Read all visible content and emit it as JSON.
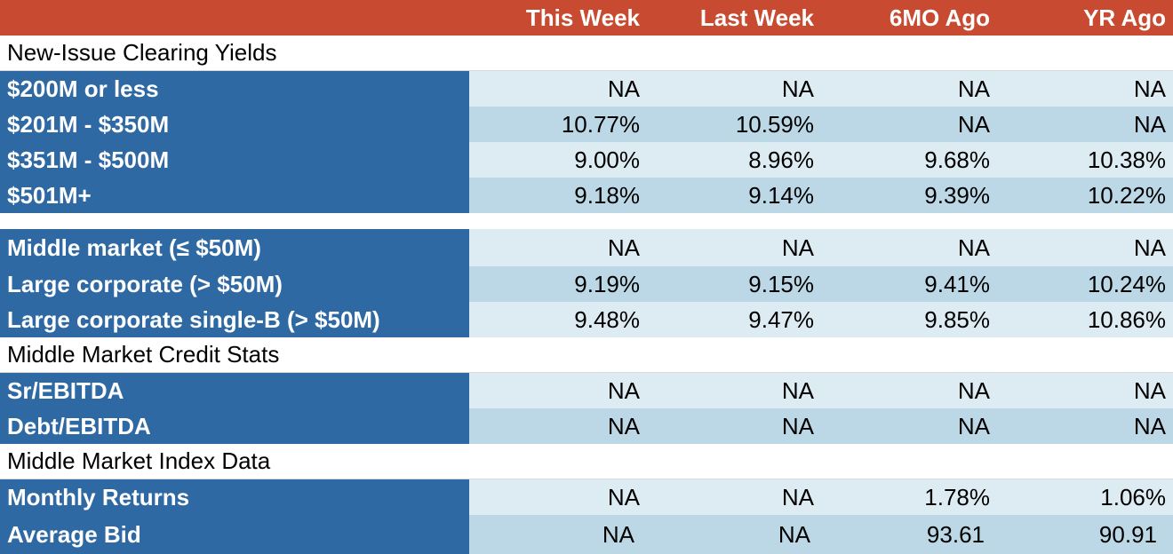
{
  "header": {
    "col1": "This Week",
    "col2": "Last Week",
    "col3": "6MO Ago",
    "col4": "YR Ago"
  },
  "sections": {
    "new_issue": "New-Issue Clearing Yields",
    "credit_stats": "Middle Market Credit Stats",
    "index_data": "Middle Market Index Data"
  },
  "rows": [
    {
      "label": "$200M or less",
      "v": [
        "NA",
        "NA",
        "NA",
        "NA"
      ]
    },
    {
      "label": "$201M - $350M",
      "v": [
        "10.77%",
        "10.59%",
        "NA",
        "NA"
      ]
    },
    {
      "label": "$351M - $500M",
      "v": [
        "9.00%",
        "8.96%",
        "9.68%",
        "10.38%"
      ]
    },
    {
      "label": "$501M+",
      "v": [
        "9.18%",
        "9.14%",
        "9.39%",
        "10.22%"
      ]
    },
    {
      "label": "Middle market (≤ $50M)",
      "v": [
        "NA",
        "NA",
        "NA",
        "NA"
      ]
    },
    {
      "label": "Large corporate (> $50M)",
      "v": [
        "9.19%",
        "9.15%",
        "9.41%",
        "10.24%"
      ]
    },
    {
      "label": "Large corporate single-B (> $50M)",
      "v": [
        "9.48%",
        "9.47%",
        "9.85%",
        "10.86%"
      ]
    },
    {
      "label": "Sr/EBITDA",
      "v": [
        "NA",
        "NA",
        "NA",
        "NA"
      ]
    },
    {
      "label": "Debt/EBITDA",
      "v": [
        "NA",
        "NA",
        "NA",
        "NA"
      ]
    },
    {
      "label": "Monthly Returns",
      "v": [
        "NA",
        "NA",
        "1.78%",
        "1.06%"
      ]
    },
    {
      "label": "Average Bid",
      "v": [
        "NA",
        "NA",
        "93.61",
        "90.91"
      ]
    }
  ],
  "colors": {
    "header_bg": "#c84b31",
    "label_bg": "#2e69a3",
    "value_light": "#ddebf2",
    "value_dark": "#bcd8e6"
  }
}
